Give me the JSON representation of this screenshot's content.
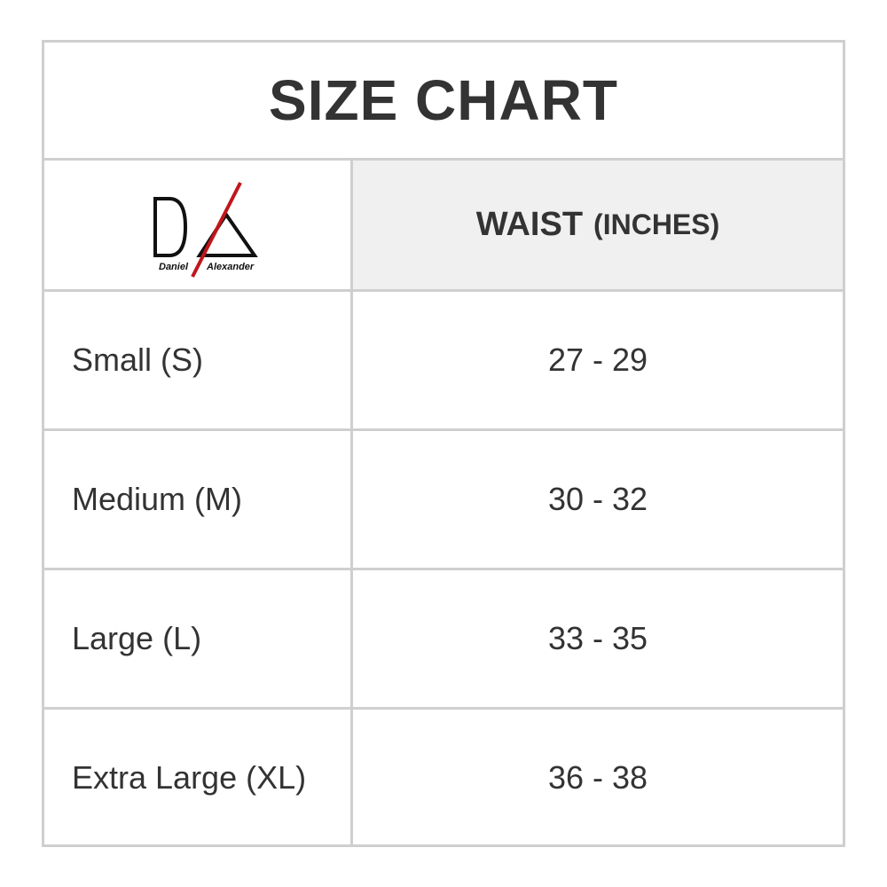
{
  "title": "SIZE CHART",
  "logo": {
    "brand": "Daniel Alexander",
    "accent_color": "#c0161b"
  },
  "header": {
    "column": "WAIST",
    "unit": "(INCHES)"
  },
  "rows": [
    {
      "size": "Small (S)",
      "waist": "27 - 29"
    },
    {
      "size": "Medium (M)",
      "waist": "30 - 32"
    },
    {
      "size": "Large (L)",
      "waist": "33 - 35"
    },
    {
      "size": "Extra Large (XL)",
      "waist": "36 - 38"
    }
  ]
}
